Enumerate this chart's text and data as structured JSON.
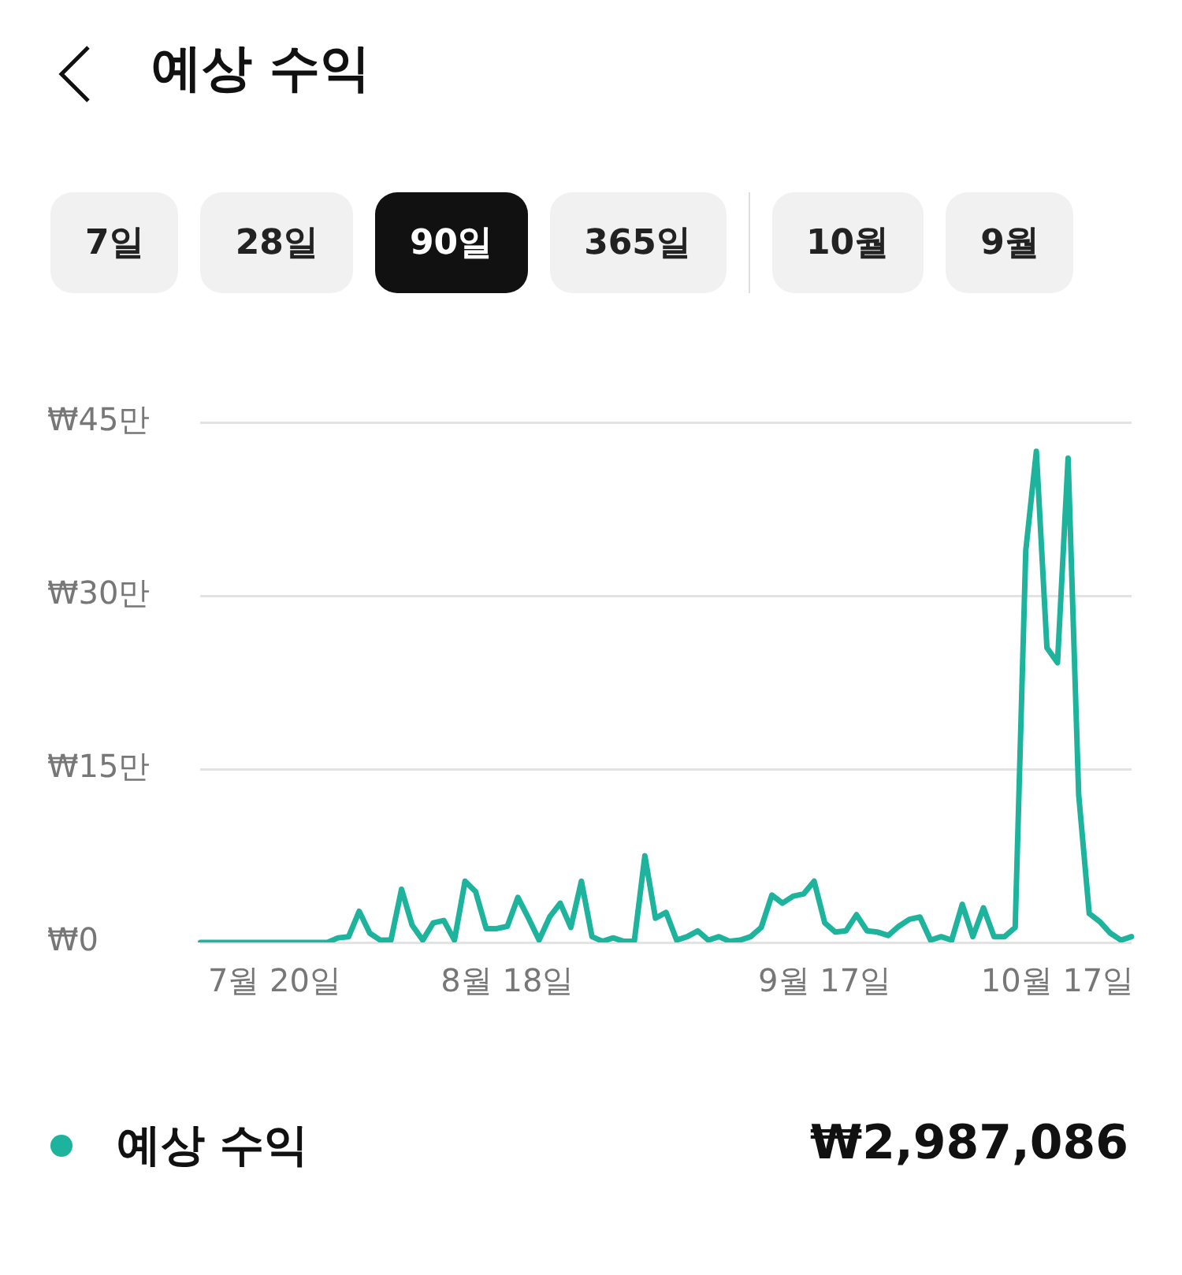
{
  "chart_data": {
    "type": "line",
    "title": "예상 수익",
    "categories": [
      null,
      null,
      null,
      null,
      null,
      null,
      null,
      "7월 20일",
      null,
      null,
      null,
      null,
      null,
      null,
      null,
      null,
      null,
      null,
      null,
      null,
      null,
      null,
      null,
      null,
      null,
      null,
      null,
      null,
      null,
      "8월 18일",
      null,
      null,
      null,
      null,
      null,
      null,
      null,
      null,
      null,
      null,
      null,
      null,
      null,
      null,
      null,
      null,
      null,
      null,
      null,
      null,
      null,
      null,
      null,
      null,
      null,
      null,
      null,
      null,
      null,
      "9월 17일",
      null,
      null,
      null,
      null,
      null,
      null,
      null,
      null,
      null,
      null,
      null,
      null,
      null,
      null,
      null,
      null,
      null,
      null,
      null,
      null,
      null,
      "10월 17일",
      null,
      null,
      null,
      null,
      null,
      null,
      null
    ],
    "series": [
      {
        "name": "예상 수익",
        "color": "#1db39c",
        "values": [
          0,
          0,
          0,
          0,
          0,
          0,
          0,
          0,
          0,
          0,
          0,
          0,
          0,
          0.4,
          0.5,
          2.7,
          0.8,
          0.2,
          0.2,
          4.6,
          1.5,
          0.2,
          1.7,
          1.9,
          0.2,
          5.3,
          4.4,
          1.2,
          1.2,
          1.4,
          3.9,
          2.1,
          0.2,
          2.2,
          3.4,
          1.3,
          5.3,
          0.5,
          0.1,
          0.4,
          0.1,
          0.1,
          7.5,
          2.1,
          2.6,
          0.2,
          0.5,
          1,
          0.2,
          0.5,
          0.1,
          0.2,
          0.5,
          1.3,
          4.1,
          3.4,
          4,
          4.2,
          5.3,
          1.7,
          0.9,
          1,
          2.4,
          1,
          0.9,
          0.6,
          1.4,
          2,
          2.2,
          0.2,
          0.5,
          0.2,
          3.3,
          0.5,
          3,
          0.5,
          0.5,
          1.3,
          33.9,
          42.5,
          25.5,
          24.2,
          41.9,
          12.8,
          2.5,
          1.8,
          0.8,
          0.2,
          0.5
        ]
      }
    ],
    "ylim": [
      0,
      45
    ],
    "yticks": [
      {
        "value": 0,
        "label": "₩0"
      },
      {
        "value": 15,
        "label": "₩15만"
      },
      {
        "value": 30,
        "label": "₩30만"
      },
      {
        "value": 45,
        "label": "₩45만"
      }
    ],
    "grid": "y",
    "legend": "bottom",
    "marker": "none",
    "line_style": "solid",
    "annotations": [
      "7일",
      "28일",
      "90일",
      "365일",
      "10월",
      "9월",
      "₩2,987,086"
    ]
  }
}
